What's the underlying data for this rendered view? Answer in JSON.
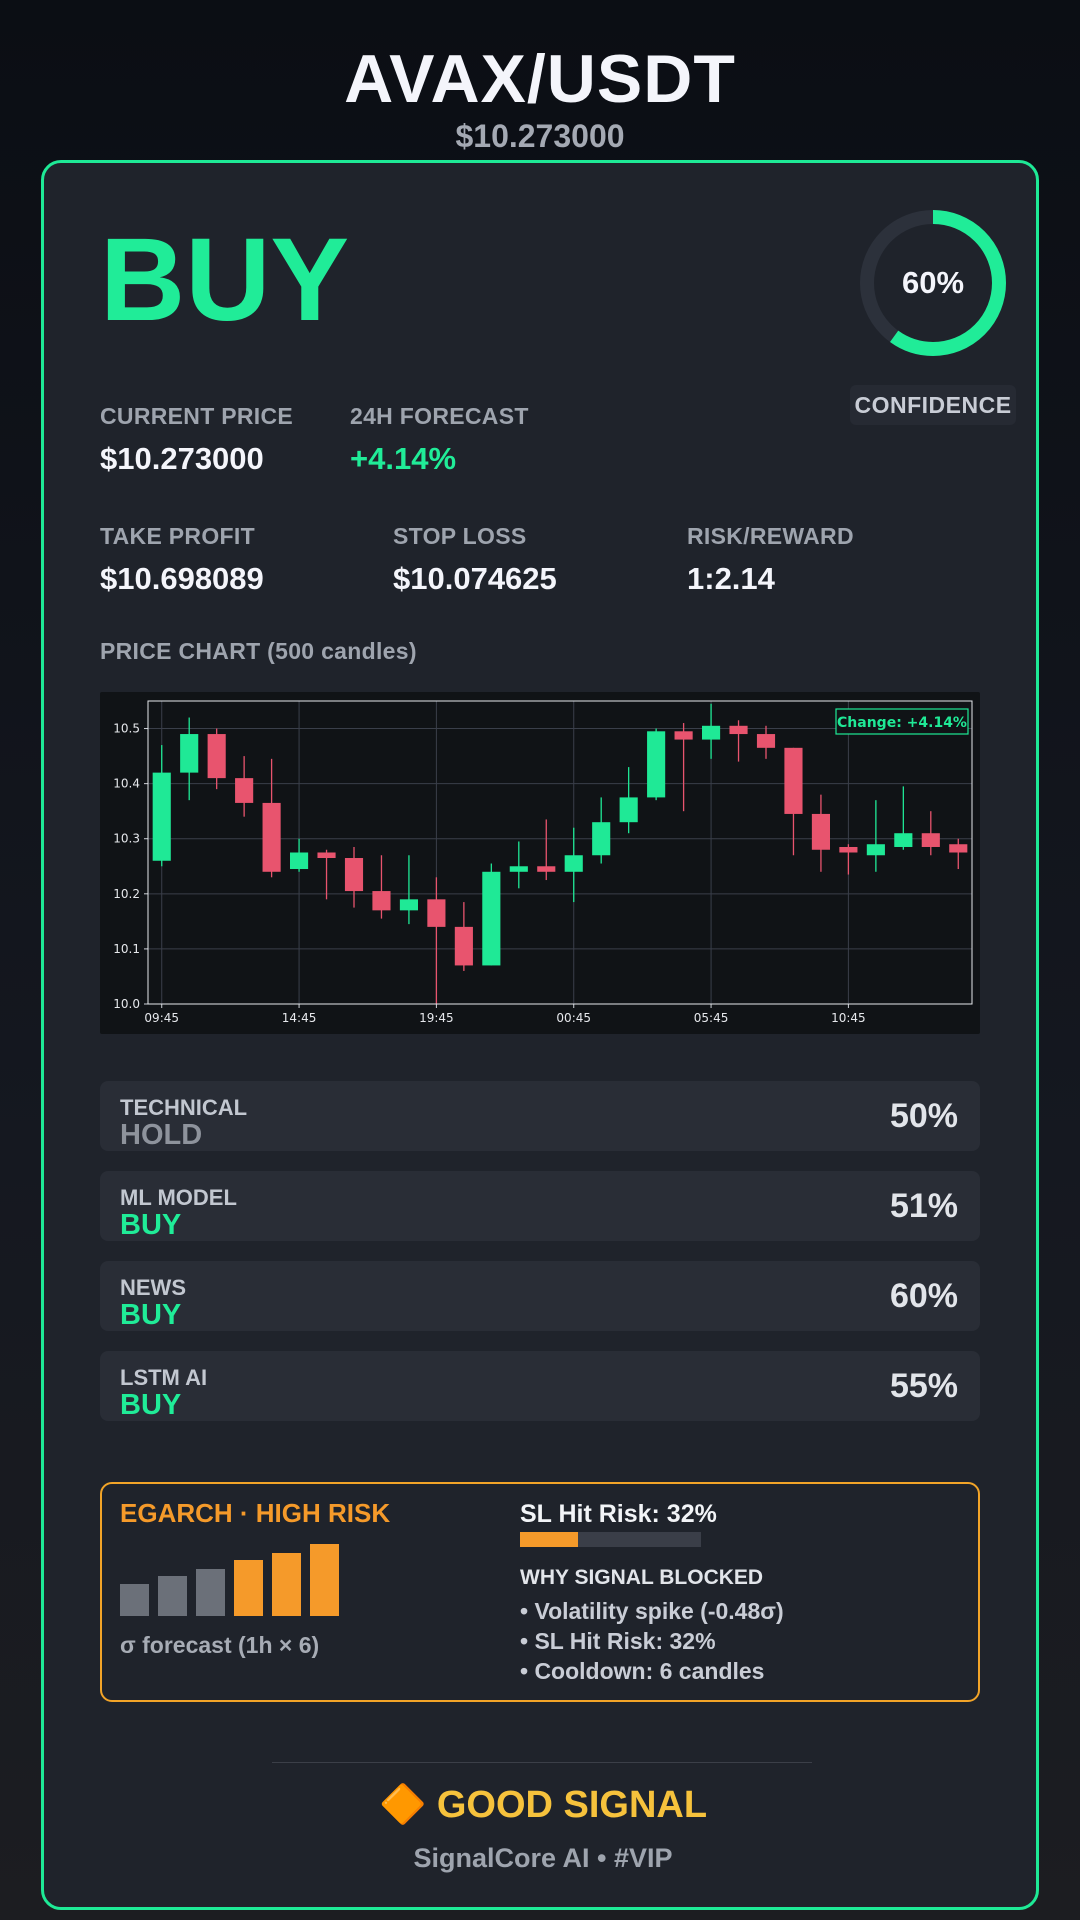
{
  "header": {
    "pair": "AVAX/USDT",
    "price": "$10.273000"
  },
  "signal": {
    "action": "BUY",
    "confidence_label": "60%",
    "confidence_value": 0.6,
    "confidence_badge": "CONFIDENCE",
    "accent_color": "#20ec98"
  },
  "stats": {
    "current_price_label": "CURRENT PRICE",
    "current_price": "$10.273000",
    "forecast_label": "24H FORECAST",
    "forecast": "+4.14%",
    "take_profit_label": "TAKE PROFIT",
    "take_profit": "$10.698089",
    "stop_loss_label": "STOP LOSS",
    "stop_loss": "$10.074625",
    "risk_reward_label": "RISK/REWARD",
    "risk_reward": "1:2.14"
  },
  "chart_section": {
    "title": "PRICE CHART (500 candles)"
  },
  "chart_data": {
    "type": "candlestick",
    "annotation": "Change: +4.14%",
    "ylim": [
      10.0,
      10.55
    ],
    "yticks": [
      "10.0",
      "10.1",
      "10.2",
      "10.3",
      "10.4",
      "10.5"
    ],
    "xticks": [
      "09:45",
      "14:45",
      "19:45",
      "00:45",
      "05:45",
      "10:45"
    ],
    "grid": true,
    "up_color": "#1fe996",
    "down_color": "#e8546e",
    "candles": [
      {
        "o": 10.26,
        "h": 10.47,
        "l": 10.25,
        "c": 10.42
      },
      {
        "o": 10.42,
        "h": 10.52,
        "l": 10.37,
        "c": 10.49
      },
      {
        "o": 10.49,
        "h": 10.5,
        "l": 10.39,
        "c": 10.41
      },
      {
        "o": 10.41,
        "h": 10.45,
        "l": 10.34,
        "c": 10.365
      },
      {
        "o": 10.365,
        "h": 10.445,
        "l": 10.23,
        "c": 10.24
      },
      {
        "o": 10.245,
        "h": 10.3,
        "l": 10.24,
        "c": 10.275
      },
      {
        "o": 10.275,
        "h": 10.28,
        "l": 10.19,
        "c": 10.265
      },
      {
        "o": 10.265,
        "h": 10.285,
        "l": 10.175,
        "c": 10.205
      },
      {
        "o": 10.205,
        "h": 10.27,
        "l": 10.155,
        "c": 10.17
      },
      {
        "o": 10.17,
        "h": 10.27,
        "l": 10.145,
        "c": 10.19
      },
      {
        "o": 10.19,
        "h": 10.23,
        "l": 10.0,
        "c": 10.14
      },
      {
        "o": 10.14,
        "h": 10.185,
        "l": 10.06,
        "c": 10.07
      },
      {
        "o": 10.07,
        "h": 10.255,
        "l": 10.07,
        "c": 10.24
      },
      {
        "o": 10.24,
        "h": 10.295,
        "l": 10.21,
        "c": 10.25
      },
      {
        "o": 10.25,
        "h": 10.335,
        "l": 10.225,
        "c": 10.24
      },
      {
        "o": 10.24,
        "h": 10.32,
        "l": 10.185,
        "c": 10.27
      },
      {
        "o": 10.27,
        "h": 10.375,
        "l": 10.255,
        "c": 10.33
      },
      {
        "o": 10.33,
        "h": 10.43,
        "l": 10.31,
        "c": 10.375
      },
      {
        "o": 10.375,
        "h": 10.5,
        "l": 10.37,
        "c": 10.495
      },
      {
        "o": 10.495,
        "h": 10.51,
        "l": 10.35,
        "c": 10.48
      },
      {
        "o": 10.48,
        "h": 10.545,
        "l": 10.445,
        "c": 10.505
      },
      {
        "o": 10.505,
        "h": 10.515,
        "l": 10.44,
        "c": 10.49
      },
      {
        "o": 10.49,
        "h": 10.505,
        "l": 10.445,
        "c": 10.465
      },
      {
        "o": 10.465,
        "h": 10.465,
        "l": 10.27,
        "c": 10.345
      },
      {
        "o": 10.345,
        "h": 10.38,
        "l": 10.24,
        "c": 10.28
      },
      {
        "o": 10.285,
        "h": 10.29,
        "l": 10.235,
        "c": 10.275
      },
      {
        "o": 10.27,
        "h": 10.37,
        "l": 10.24,
        "c": 10.29
      },
      {
        "o": 10.285,
        "h": 10.395,
        "l": 10.28,
        "c": 10.31
      },
      {
        "o": 10.31,
        "h": 10.35,
        "l": 10.27,
        "c": 10.285
      },
      {
        "o": 10.29,
        "h": 10.3,
        "l": 10.245,
        "c": 10.275
      }
    ]
  },
  "indicators": [
    {
      "name": "TECHNICAL",
      "signal": "HOLD",
      "percent": "50%",
      "tone": "hold"
    },
    {
      "name": "ML MODEL",
      "signal": "BUY",
      "percent": "51%",
      "tone": "buy"
    },
    {
      "name": "NEWS",
      "signal": "BUY",
      "percent": "60%",
      "tone": "buy"
    },
    {
      "name": "LSTM AI",
      "signal": "BUY",
      "percent": "55%",
      "tone": "buy"
    }
  ],
  "egarch": {
    "title": "EGARCH · HIGH RISK",
    "sigma_label": "σ forecast (1h × 6)",
    "sigma_bars": [
      0.45,
      0.55,
      0.65,
      0.78,
      0.88,
      1.0
    ],
    "sigma_bar_colors": [
      "#6b7079",
      "#6b7079",
      "#6b7079",
      "#f59a2a",
      "#f59a2a",
      "#f59a2a"
    ],
    "sl_hit_label": "SL Hit Risk: 32%",
    "sl_hit_value": 0.32,
    "blocked_title": "WHY SIGNAL BLOCKED",
    "reasons": [
      "• Volatility spike (-0.48σ)",
      "• SL Hit Risk: 32%",
      "• Cooldown: 6 candles"
    ],
    "accent_color": "#f59a2a"
  },
  "footer": {
    "verdict_icon": "🔶",
    "verdict": "GOOD SIGNAL",
    "brand": "SignalCore AI • #VIP"
  }
}
